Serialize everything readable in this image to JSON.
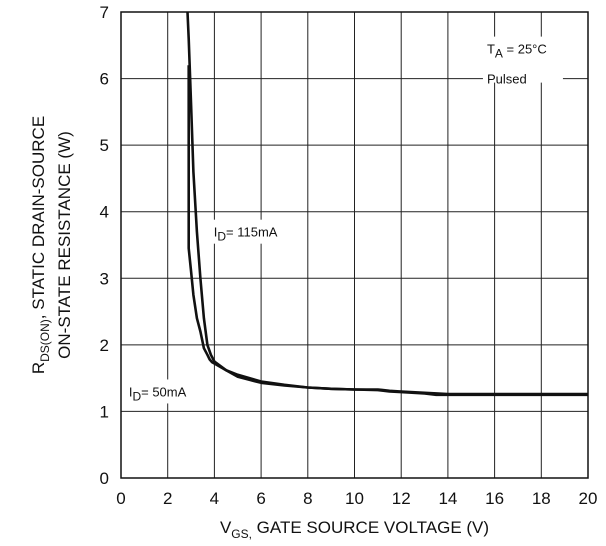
{
  "chart_data": {
    "type": "line",
    "title": "",
    "xlabel": {
      "main": "V",
      "sub": "GS,",
      "rest": " GATE SOURCE VOLTAGE (V)"
    },
    "ylabel": {
      "line1_main": "R",
      "line1_sub": "DS(ON)",
      "line1_rest": ", STATIC DRAIN-SOURCE",
      "line2": "ON-STATE RESISTANCE (W)"
    },
    "xlim": [
      0,
      20
    ],
    "ylim": [
      0,
      7
    ],
    "xticks": [
      "0",
      "2",
      "4",
      "6",
      "8",
      "10",
      "12",
      "14",
      "16",
      "18",
      "20"
    ],
    "yticks": [
      "0",
      "1",
      "2",
      "3",
      "4",
      "5",
      "6",
      "7"
    ],
    "grid": true,
    "conditions": {
      "ta_main": "T",
      "ta_sub": "A",
      "ta_rest": " = 25°C",
      "pulsed": "Pulsed"
    },
    "series": [
      {
        "name": "I_D = 115mA",
        "label_main": "I",
        "label_sub": "D",
        "label_rest": "= 115mA",
        "x": [
          2.85,
          2.9,
          3.0,
          3.1,
          3.25,
          3.4,
          3.55,
          3.7,
          3.85,
          4.0,
          4.5,
          5.0,
          6.0,
          7.0,
          8.0,
          9.0,
          10.0,
          11.0,
          11.5,
          12.0,
          13.0,
          14.0,
          16.0,
          18.0,
          20.0
        ],
        "y": [
          7.0,
          6.6,
          5.6,
          4.6,
          3.7,
          3.0,
          2.4,
          2.0,
          1.85,
          1.75,
          1.62,
          1.55,
          1.45,
          1.4,
          1.36,
          1.34,
          1.33,
          1.33,
          1.31,
          1.3,
          1.28,
          1.26,
          1.26,
          1.26,
          1.26
        ]
      },
      {
        "name": "I_D = 50mA",
        "label_main": "I",
        "label_sub": "D",
        "label_rest": "= 50mA",
        "x": [
          2.9,
          2.9,
          3.0,
          3.1,
          3.25,
          3.4,
          3.55,
          3.7,
          3.8,
          3.9,
          4.0,
          4.5,
          5.0,
          6.0,
          7.0,
          8.0,
          9.0,
          10.0,
          11.0,
          11.5,
          12.0,
          13.0,
          13.5,
          14.0,
          16.0,
          18.0,
          20.0
        ],
        "y": [
          6.2,
          3.45,
          3.1,
          2.75,
          2.4,
          2.2,
          1.95,
          1.85,
          1.78,
          1.74,
          1.72,
          1.62,
          1.52,
          1.43,
          1.39,
          1.36,
          1.34,
          1.33,
          1.32,
          1.3,
          1.29,
          1.27,
          1.25,
          1.25,
          1.25,
          1.25,
          1.25
        ]
      }
    ]
  }
}
